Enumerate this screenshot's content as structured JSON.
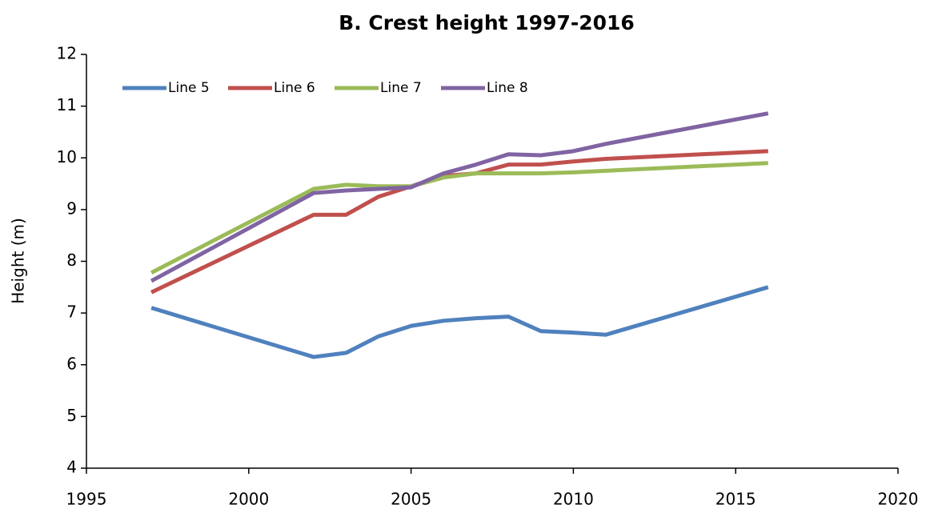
{
  "chart_data": {
    "type": "line",
    "title": "B. Crest height 1997-2016",
    "ylabel": "Height (m)",
    "x": [
      1997,
      2002,
      2003,
      2004,
      2005,
      2006,
      2007,
      2008,
      2009,
      2010,
      2011,
      2016
    ],
    "series": [
      {
        "name": "Line 5",
        "color": "#4f81bd",
        "values": [
          7.1,
          6.15,
          6.23,
          6.55,
          6.75,
          6.85,
          6.9,
          6.93,
          6.65,
          6.62,
          6.58,
          7.5
        ]
      },
      {
        "name": "Line 6",
        "color": "#c0504d",
        "values": [
          7.4,
          8.9,
          8.9,
          9.25,
          9.45,
          9.65,
          9.7,
          9.87,
          9.87,
          9.93,
          9.98,
          10.13
        ]
      },
      {
        "name": "Line 7",
        "color": "#9bbb59",
        "values": [
          7.78,
          9.4,
          9.48,
          9.45,
          9.45,
          9.62,
          9.7,
          9.7,
          9.7,
          9.72,
          9.75,
          9.9
        ]
      },
      {
        "name": "Line 8",
        "color": "#8064a2",
        "values": [
          7.62,
          9.32,
          9.37,
          9.4,
          9.43,
          9.7,
          9.87,
          10.07,
          10.05,
          10.13,
          10.27,
          10.86
        ]
      }
    ],
    "xlim": [
      1995,
      2020
    ],
    "xticks": [
      1995,
      2000,
      2005,
      2010,
      2015,
      2020
    ],
    "ylim": [
      4,
      12
    ],
    "yticks": [
      4,
      5,
      6,
      7,
      8,
      9,
      10,
      11,
      12
    ],
    "grid": false,
    "legend": "top-left"
  }
}
